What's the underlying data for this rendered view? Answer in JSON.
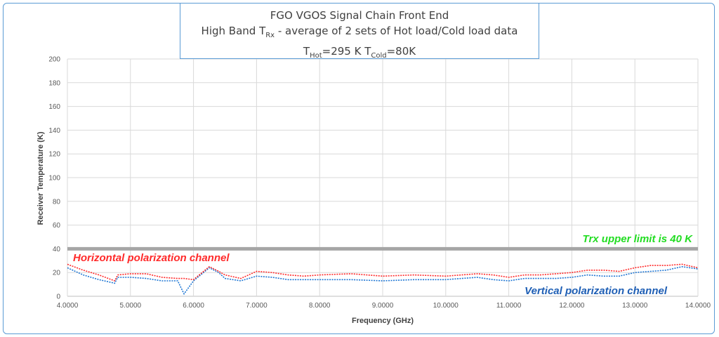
{
  "title": {
    "line1": "FGO VGOS Signal Chain Front End",
    "line2_prefix": "High Band T",
    "line2_sub": "Rx",
    "line2_suffix": " - average of 2 sets of Hot load/Cold load data",
    "line3_t1": "T",
    "line3_sub1": "Hot",
    "line3_mid": "=295 K T",
    "line3_sub2": "Cold",
    "line3_end": "=80K"
  },
  "colors": {
    "horizontal": "#ff2a2a",
    "vertical": "#1f77d4",
    "limit": "#a6a6a6",
    "limit_label": "#22dd22",
    "vertical_label": "#1f5fb5",
    "grid": "#d9d9d9"
  },
  "chart_data": {
    "type": "line",
    "xlabel": "Frequency (GHz)",
    "ylabel": "Receiver Temperature (K)",
    "xlim": [
      4.0,
      14.0
    ],
    "ylim": [
      0,
      200
    ],
    "x_ticks": [
      "4.0000",
      "5.0000",
      "6.0000",
      "7.0000",
      "8.0000",
      "9.0000",
      "10.0000",
      "11.0000",
      "12.0000",
      "13.0000",
      "14.0000"
    ],
    "y_ticks": [
      "0",
      "20",
      "40",
      "60",
      "80",
      "100",
      "120",
      "140",
      "160",
      "180",
      "200"
    ],
    "grid": true,
    "x": [
      4.0,
      4.25,
      4.5,
      4.75,
      4.8,
      5.0,
      5.25,
      5.5,
      5.75,
      5.85,
      6.0,
      6.25,
      6.4,
      6.5,
      6.75,
      7.0,
      7.25,
      7.5,
      7.75,
      8.0,
      8.5,
      9.0,
      9.5,
      10.0,
      10.25,
      10.5,
      10.75,
      11.0,
      11.25,
      11.5,
      11.75,
      12.0,
      12.25,
      12.5,
      12.75,
      13.0,
      13.25,
      13.5,
      13.75,
      14.0
    ],
    "series": [
      {
        "name": "Horizontal polarization channel",
        "style": "dotted",
        "values": [
          27,
          22,
          18,
          13,
          18,
          19,
          19,
          16,
          15,
          15,
          14,
          25,
          21,
          18,
          15,
          21,
          20,
          18,
          17,
          18,
          19,
          17,
          18,
          17,
          18,
          19,
          18,
          16,
          18,
          18,
          19,
          20,
          22,
          22,
          21,
          24,
          26,
          26,
          27,
          24
        ]
      },
      {
        "name": "Vertical polarization channel",
        "style": "dotted",
        "values": [
          24,
          18,
          14,
          11,
          16,
          16,
          15,
          13,
          13,
          2,
          13,
          24,
          20,
          15,
          13,
          17,
          16,
          14,
          14,
          14,
          14,
          13,
          14,
          14,
          15,
          16,
          14,
          13,
          15,
          15,
          15,
          16,
          18,
          17,
          17,
          20,
          21,
          22,
          25,
          23
        ]
      }
    ],
    "reference_line": {
      "y": 40,
      "label": "Trx upper limit is 40 K"
    },
    "annotations": {
      "horizontal_label": "Horizontal polarization channel",
      "vertical_label": "Vertical polarization channel"
    }
  }
}
